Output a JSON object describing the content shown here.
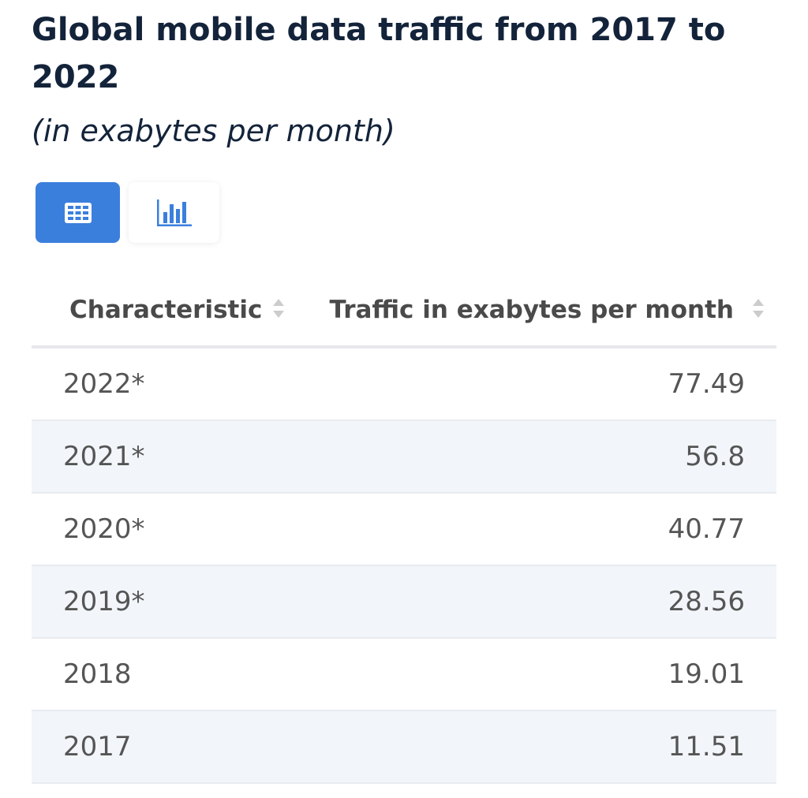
{
  "header": {
    "title": "Global mobile data traffic from 2017 to 2022",
    "subtitle": "(in exabytes per month)"
  },
  "view_toggle": {
    "active": "table",
    "buttons": [
      {
        "icon": "table-icon",
        "active": true
      },
      {
        "icon": "bar-chart-icon",
        "active": false
      }
    ],
    "accent_color": "#3b7fdd"
  },
  "table": {
    "columns": [
      "Characteristic",
      "Traffic in exabytes per month"
    ],
    "rows": [
      {
        "year": "2022*",
        "value": "77.49"
      },
      {
        "year": "2021*",
        "value": "56.8"
      },
      {
        "year": "2020*",
        "value": "40.77"
      },
      {
        "year": "2019*",
        "value": "28.56"
      },
      {
        "year": "2018",
        "value": "19.01"
      },
      {
        "year": "2017",
        "value": "11.51"
      }
    ]
  }
}
